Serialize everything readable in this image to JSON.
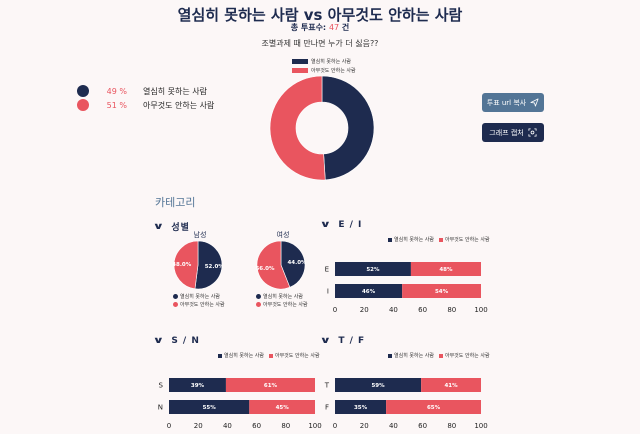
{
  "title": "열심히 못하는 사람 vs 아무것도 안하는 사람",
  "total_label": "총 투표수:",
  "total_count": "47",
  "total_unit": "건",
  "question": "조별과제 때 만나면 누가 더 싫음??",
  "colors": {
    "navy": "#1e2b4f",
    "coral": "#e9555f",
    "steel": "#537596"
  },
  "options": [
    {
      "label": "열심히 못하는 사람",
      "percent": "49 %",
      "color": "#1e2b4f"
    },
    {
      "label": "아무것도 안하는 사람",
      "percent": "51 %",
      "color": "#e9555f"
    }
  ],
  "buttons": {
    "copy_url": "투표 url 복사",
    "capture": "그래프 캡처"
  },
  "category_title": "카테고리",
  "sections": {
    "gender": "성별",
    "ei": "E / I",
    "sn": "S / N",
    "tf": "T / F",
    "male": "남성",
    "female": "여성"
  },
  "chart_data": [
    {
      "type": "pie",
      "donut": true,
      "labels": [
        "열심히 못하는 사람",
        "아무것도 안하는 사람"
      ],
      "values": [
        49,
        51
      ]
    },
    {
      "type": "pie",
      "title": "남성",
      "labels": [
        "열심히 못하는 사람",
        "아무것도 안하는 사람"
      ],
      "values": [
        52.0,
        48.0
      ],
      "value_labels": [
        "52.0%",
        "48.0%"
      ]
    },
    {
      "type": "pie",
      "title": "여성",
      "labels": [
        "열심히 못하는 사람",
        "아무것도 안하는 사람"
      ],
      "values": [
        44.0,
        56.0
      ],
      "value_labels": [
        "44.0%",
        "56.0%"
      ]
    },
    {
      "type": "bar",
      "orientation": "horizontal",
      "stacked": true,
      "title": "E / I",
      "categories": [
        "E",
        "I"
      ],
      "series": [
        {
          "name": "열심히 못하는 사람",
          "values": [
            52,
            46
          ],
          "labels": [
            "52%",
            "46%"
          ]
        },
        {
          "name": "아무것도 안하는 사람",
          "values": [
            48,
            54
          ],
          "labels": [
            "48%",
            "54%"
          ]
        }
      ],
      "xlim": [
        0,
        100
      ],
      "xticks": [
        "0",
        "20",
        "40",
        "60",
        "80",
        "100"
      ]
    },
    {
      "type": "bar",
      "orientation": "horizontal",
      "stacked": true,
      "title": "S / N",
      "categories": [
        "S",
        "N"
      ],
      "series": [
        {
          "name": "열심히 못하는 사람",
          "values": [
            39,
            55
          ],
          "labels": [
            "39%",
            "55%"
          ]
        },
        {
          "name": "아무것도 안하는 사람",
          "values": [
            61,
            45
          ],
          "labels": [
            "61%",
            "45%"
          ]
        }
      ],
      "xlim": [
        0,
        100
      ],
      "xticks": [
        "0",
        "20",
        "40",
        "60",
        "80",
        "100"
      ]
    },
    {
      "type": "bar",
      "orientation": "horizontal",
      "stacked": true,
      "title": "T / F",
      "categories": [
        "T",
        "F"
      ],
      "series": [
        {
          "name": "열심히 못하는 사람",
          "values": [
            59,
            35
          ],
          "labels": [
            "59%",
            "35%"
          ]
        },
        {
          "name": "아무것도 안하는 사람",
          "values": [
            41,
            65
          ],
          "labels": [
            "41%",
            "65%"
          ]
        }
      ],
      "xlim": [
        0,
        100
      ],
      "xticks": [
        "0",
        "20",
        "40",
        "60",
        "80",
        "100"
      ]
    }
  ]
}
